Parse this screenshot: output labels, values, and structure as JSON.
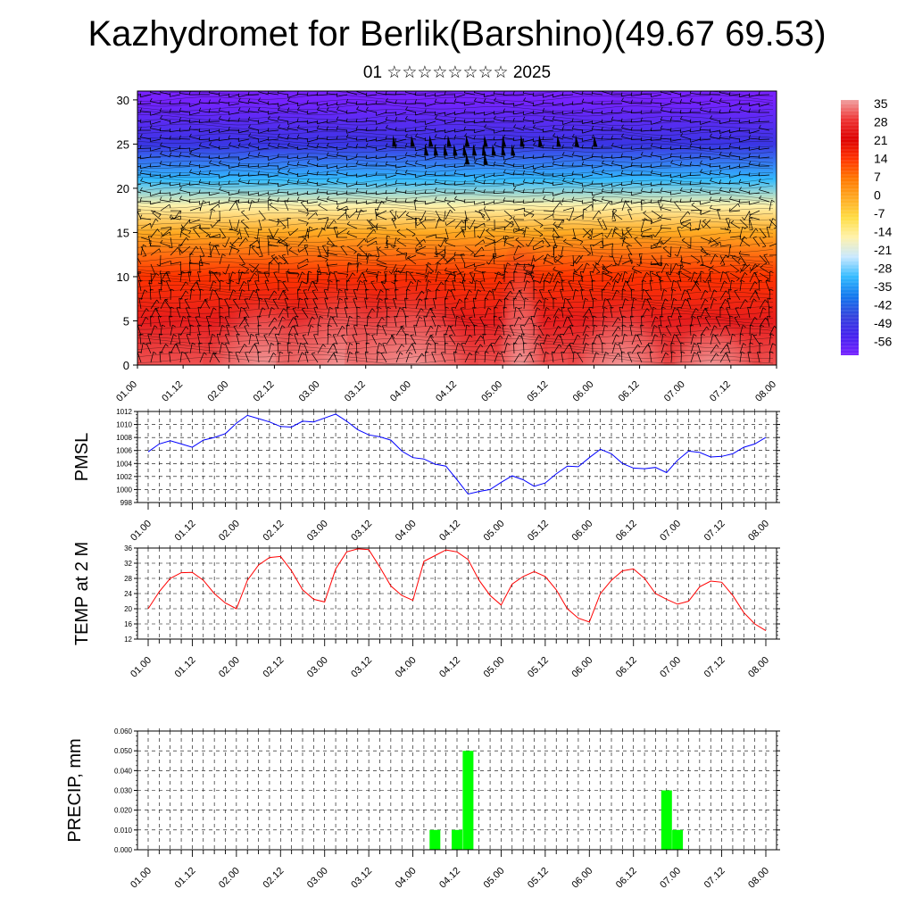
{
  "title": "Kazhydromet for Berlik(Barshino)(49.67 69.53)",
  "subtitle": "01 ☆☆☆☆☆☆☆☆ 2025",
  "time_labels": [
    "01.00",
    "01.12",
    "02.00",
    "02.12",
    "03.00",
    "03.12",
    "04.00",
    "04.12",
    "05.00",
    "05.12",
    "06.00",
    "06.12",
    "07.00",
    "07.12",
    "08.00"
  ],
  "colors": {
    "pmsl_line": "#0000ff",
    "temp_line": "#ff0000",
    "precip_bar": "#00ff00",
    "grid": "#000000"
  },
  "chart_data": [
    {
      "type": "heatmap",
      "name": "vertical-cross-section",
      "title": "",
      "ylabel": "",
      "y_ticks": [
        0,
        5,
        10,
        15,
        20,
        25,
        30
      ],
      "ylim": [
        0,
        31
      ],
      "x_tick_labels": [
        "01.00",
        "01.12",
        "02.00",
        "02.12",
        "03.00",
        "03.12",
        "04.00",
        "04.12",
        "05.00",
        "05.12",
        "06.00",
        "06.12",
        "07.00",
        "07.12",
        "08.00"
      ],
      "colorbar": {
        "labels": [
          "35",
          "28",
          "21",
          "14",
          "7",
          "0",
          "-7",
          "-14",
          "-21",
          "-28",
          "-35",
          "-42",
          "-49",
          "-56"
        ],
        "values": [
          35,
          28,
          21,
          14,
          7,
          0,
          -7,
          -14,
          -21,
          -28,
          -35,
          -42,
          -49,
          -56
        ],
        "colors": [
          "#f0a0a0",
          "#ee3333",
          "#dd0000",
          "#ff3300",
          "#ff7700",
          "#ffaa22",
          "#ffdd44",
          "#fff2aa",
          "#c8e8ff",
          "#33bbff",
          "#1177ee",
          "#3344dd",
          "#4422ee",
          "#7722ff"
        ]
      },
      "wind_barbs": "dense black wind barbs across the field; black flag markers near 23-25 between 03.12 and 05.12",
      "temperature_by_height": [
        {
          "height": 0,
          "value": 30
        },
        {
          "height": 5,
          "value": 25
        },
        {
          "height": 10,
          "value": 14
        },
        {
          "height": 15,
          "value": 0
        },
        {
          "height": 18,
          "value": -14
        },
        {
          "height": 21,
          "value": -28
        },
        {
          "height": 25,
          "value": -45
        },
        {
          "height": 30,
          "value": -56
        }
      ]
    },
    {
      "type": "line",
      "name": "pmsl",
      "ylabel": "PMSL",
      "ylim": [
        998,
        1012
      ],
      "y_ticks": [
        998,
        1000,
        1002,
        1004,
        1006,
        1008,
        1010,
        1012
      ],
      "x_tick_labels": [
        "01.00",
        "01.12",
        "02.00",
        "02.12",
        "03.00",
        "03.12",
        "04.00",
        "04.12",
        "05.00",
        "05.12",
        "06.00",
        "06.12",
        "07.00",
        "07.12",
        "08.00"
      ],
      "x_step_hours": 3,
      "series": [
        {
          "values": [
            1005.8,
            1007.0,
            1007.5,
            1007.0,
            1006.5,
            1007.6,
            1008.0,
            1008.6,
            1010.2,
            1011.4,
            1010.9,
            1010.4,
            1009.7,
            1009.6,
            1010.5,
            1010.4,
            1011.0,
            1011.6,
            1010.5,
            1009.2,
            1008.4,
            1008.1,
            1007.6,
            1005.9,
            1004.9,
            1004.7,
            1003.9,
            1003.6,
            1001.5,
            999.3,
            999.7,
            1000.0,
            1001.1,
            1002.1,
            1001.5,
            1000.5,
            1001.0,
            1002.4,
            1003.6,
            1003.5,
            1004.9,
            1006.2,
            1005.5,
            1004.0,
            1003.3,
            1003.2,
            1003.4,
            1002.6,
            1004.5,
            1005.9,
            1005.7,
            1005.0,
            1005.1,
            1005.5,
            1006.5,
            1007.0,
            1008.0
          ]
        }
      ]
    },
    {
      "type": "line",
      "name": "temp-2m",
      "ylabel": "TEMP at 2 M",
      "ylim": [
        12,
        36
      ],
      "y_ticks": [
        12,
        16,
        20,
        24,
        28,
        32,
        36
      ],
      "x_tick_labels": [
        "01.00",
        "01.12",
        "02.00",
        "02.12",
        "03.00",
        "03.12",
        "04.00",
        "04.12",
        "05.00",
        "05.12",
        "06.00",
        "06.12",
        "07.00",
        "07.12",
        "08.00"
      ],
      "x_step_hours": 3,
      "series": [
        {
          "values": [
            20.0,
            24.5,
            28.0,
            29.5,
            29.6,
            27.5,
            24.0,
            21.5,
            20.0,
            27.5,
            31.5,
            33.5,
            33.8,
            30.0,
            25.0,
            22.5,
            21.8,
            30.5,
            35.0,
            35.8,
            35.6,
            31.0,
            26.0,
            23.5,
            22.2,
            32.5,
            34.0,
            35.5,
            35.0,
            33.0,
            27.5,
            23.5,
            21.0,
            26.5,
            28.5,
            29.8,
            28.5,
            25.0,
            20.0,
            17.5,
            16.5,
            24.0,
            27.5,
            30.0,
            30.5,
            28.0,
            24.0,
            22.5,
            21.2,
            22.0,
            25.8,
            27.3,
            27.0,
            23.5,
            19.0,
            16.0,
            14.2
          ]
        }
      ]
    },
    {
      "type": "bar",
      "name": "precip",
      "ylabel": "PRECIP, mm",
      "ylim": [
        0,
        0.06
      ],
      "y_ticks": [
        "0.000",
        "0.010",
        "0.020",
        "0.030",
        "0.040",
        "0.050",
        "0.060"
      ],
      "x_tick_labels": [
        "01.00",
        "01.12",
        "02.00",
        "02.12",
        "03.00",
        "03.12",
        "04.00",
        "04.12",
        "05.00",
        "05.12",
        "06.00",
        "06.12",
        "07.00",
        "07.12",
        "08.00"
      ],
      "bars": [
        {
          "x": "04.06",
          "value": 0.01
        },
        {
          "x": "04.12",
          "value": 0.01
        },
        {
          "x": "04.15",
          "value": 0.05
        },
        {
          "x": "06.21",
          "value": 0.03
        },
        {
          "x": "07.00",
          "value": 0.01
        }
      ]
    }
  ]
}
